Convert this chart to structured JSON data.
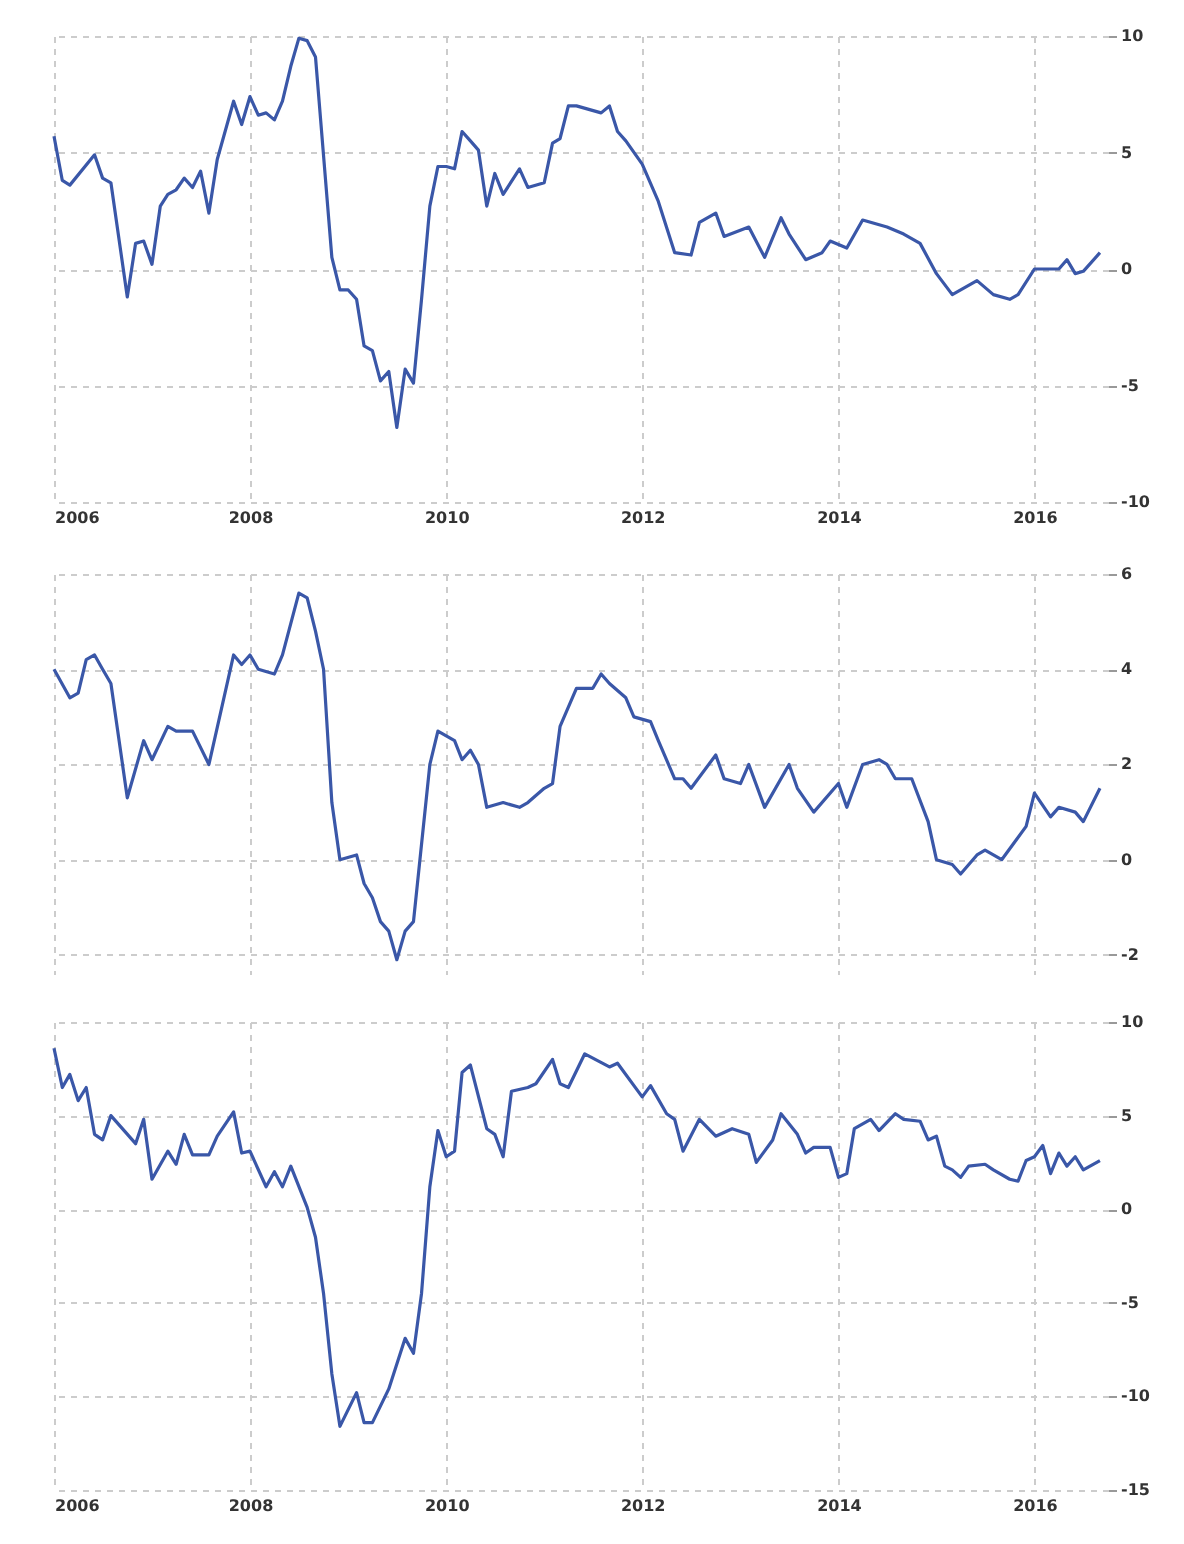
{
  "chart_data": [
    {
      "type": "line",
      "x": [
        "2006-01",
        "2006-02",
        "2006-03",
        "2006-06",
        "2006-07",
        "2006-08",
        "2006-10",
        "2006-11",
        "2006-12",
        "2007-01",
        "2007-02",
        "2007-03",
        "2007-04",
        "2007-05",
        "2007-06",
        "2007-07",
        "2007-08",
        "2007-09",
        "2007-11",
        "2007-12",
        "2008-01",
        "2008-02",
        "2008-03",
        "2008-04",
        "2008-05",
        "2008-06",
        "2008-07",
        "2008-08",
        "2008-09",
        "2008-11",
        "2008-12",
        "2009-01",
        "2009-02",
        "2009-03",
        "2009-04",
        "2009-05",
        "2009-06",
        "2009-07",
        "2009-08",
        "2009-09",
        "2009-10",
        "2009-11",
        "2009-12",
        "2010-01",
        "2010-02",
        "2010-03",
        "2010-04",
        "2010-05",
        "2010-06",
        "2010-07",
        "2010-08",
        "2010-10",
        "2010-11",
        "2011-01",
        "2011-02",
        "2011-03",
        "2011-04",
        "2011-05",
        "2011-08",
        "2011-09",
        "2011-10",
        "2011-11",
        "2012-01",
        "2012-03",
        "2012-05",
        "2012-07",
        "2012-08",
        "2012-10",
        "2012-11",
        "2013-02",
        "2013-04",
        "2013-06",
        "2013-07",
        "2013-09",
        "2013-11",
        "2013-12",
        "2014-02",
        "2014-04",
        "2014-07",
        "2014-09",
        "2014-11",
        "2015-01",
        "2015-03",
        "2015-06",
        "2015-08",
        "2015-10",
        "2015-11",
        "2016-01",
        "2016-04",
        "2016-05",
        "2016-06",
        "2016-07",
        "2016-09"
      ],
      "series": [
        {
          "color": "#3a57a8",
          "values": [
            5.7,
            3.8,
            3.6,
            4.9,
            3.9,
            3.7,
            -1.2,
            1.1,
            1.2,
            0.2,
            2.7,
            3.2,
            3.4,
            3.9,
            3.5,
            4.2,
            2.4,
            4.7,
            7.2,
            6.2,
            7.4,
            6.6,
            6.7,
            6.4,
            7.2,
            8.7,
            9.9,
            9.8,
            9.1,
            0.5,
            -0.9,
            -0.9,
            -1.3,
            -3.3,
            -3.5,
            -4.8,
            -4.4,
            -6.8,
            -4.3,
            -4.9,
            -1.3,
            2.7,
            4.4,
            4.4,
            4.3,
            5.9,
            5.5,
            5.1,
            2.7,
            4.1,
            3.2,
            4.3,
            3.5,
            3.7,
            5.4,
            5.6,
            7.0,
            7.0,
            6.7,
            7.0,
            5.9,
            5.5,
            4.5,
            2.9,
            0.7,
            0.6,
            2.0,
            2.4,
            1.4,
            1.8,
            0.5,
            2.2,
            1.5,
            0.4,
            0.7,
            1.2,
            0.9,
            2.1,
            1.8,
            1.5,
            1.1,
            -0.2,
            -1.1,
            -0.5,
            -1.1,
            -1.3,
            -1.1,
            0,
            0,
            0.4,
            -0.2,
            -0.1,
            0.7
          ]
        }
      ],
      "xlim": [
        "2006-01",
        "2016-10"
      ],
      "xticks": [
        "2006",
        "2008",
        "2010",
        "2012",
        "2014",
        "2016"
      ],
      "ylim": [
        -10,
        10
      ],
      "yticks": [
        -10,
        -5,
        0,
        5,
        10
      ],
      "grid": true
    },
    {
      "type": "line",
      "x": [
        "2006-01",
        "2006-03",
        "2006-04",
        "2006-05",
        "2006-06",
        "2006-07",
        "2006-08",
        "2006-10",
        "2006-12",
        "2007-01",
        "2007-03",
        "2007-04",
        "2007-06",
        "2007-08",
        "2007-11",
        "2007-12",
        "2008-01",
        "2008-02",
        "2008-04",
        "2008-05",
        "2008-07",
        "2008-08",
        "2008-09",
        "2008-10",
        "2008-11",
        "2008-12",
        "2009-02",
        "2009-03",
        "2009-04",
        "2009-05",
        "2009-06",
        "2009-07",
        "2009-08",
        "2009-09",
        "2009-11",
        "2009-12",
        "2010-02",
        "2010-03",
        "2010-04",
        "2010-05",
        "2010-06",
        "2010-08",
        "2010-10",
        "2010-11",
        "2011-01",
        "2011-02",
        "2011-03",
        "2011-05",
        "2011-07",
        "2011-08",
        "2011-09",
        "2011-11",
        "2011-12",
        "2012-02",
        "2012-03",
        "2012-05",
        "2012-06",
        "2012-07",
        "2012-10",
        "2012-11",
        "2013-01",
        "2013-02",
        "2013-04",
        "2013-07",
        "2013-08",
        "2013-10",
        "2014-01",
        "2014-02",
        "2014-04",
        "2014-06",
        "2014-07",
        "2014-08",
        "2014-10",
        "2014-12",
        "2015-01",
        "2015-03",
        "2015-04",
        "2015-06",
        "2015-07",
        "2015-09",
        "2015-12",
        "2016-01",
        "2016-03",
        "2016-04",
        "2016-06",
        "2016-07",
        "2016-09"
      ],
      "series": [
        {
          "color": "#3a57a8",
          "values": [
            4.0,
            3.4,
            3.5,
            4.2,
            4.3,
            4.0,
            3.7,
            1.3,
            2.5,
            2.1,
            2.8,
            2.7,
            2.7,
            2.0,
            4.3,
            4.1,
            4.3,
            4.0,
            3.9,
            4.3,
            5.6,
            5.5,
            4.8,
            4.0,
            1.2,
            0.0,
            0.1,
            -0.5,
            -0.8,
            -1.3,
            -1.5,
            -2.1,
            -1.5,
            -1.3,
            2.0,
            2.7,
            2.5,
            2.1,
            2.3,
            2.0,
            1.1,
            1.2,
            1.1,
            1.2,
            1.5,
            1.6,
            2.8,
            3.6,
            3.6,
            3.9,
            3.7,
            3.4,
            3.0,
            2.9,
            2.5,
            1.7,
            1.7,
            1.5,
            2.2,
            1.7,
            1.6,
            2.0,
            1.1,
            2.0,
            1.5,
            1.0,
            1.6,
            1.1,
            2.0,
            2.1,
            2.0,
            1.7,
            1.7,
            0.8,
            0.0,
            -0.1,
            -0.3,
            0.1,
            0.2,
            0.0,
            0.7,
            1.4,
            0.9,
            1.1,
            1.0,
            0.8,
            1.5
          ]
        }
      ],
      "xlim": [
        "2006-01",
        "2016-10"
      ],
      "xticks": [
        "2006",
        "2008",
        "2010",
        "2012",
        "2014",
        "2016"
      ],
      "ylim": [
        -2.4,
        6
      ],
      "yticks": [
        -2,
        0,
        2,
        4,
        6
      ],
      "grid": true,
      "tick_labels": "y"
    },
    {
      "type": "line",
      "x": [
        "2006-01",
        "2006-02",
        "2006-03",
        "2006-04",
        "2006-05",
        "2006-06",
        "2006-07",
        "2006-08",
        "2006-11",
        "2006-12",
        "2007-01",
        "2007-03",
        "2007-04",
        "2007-05",
        "2007-06",
        "2007-08",
        "2007-09",
        "2007-11",
        "2007-12",
        "2008-01",
        "2008-03",
        "2008-04",
        "2008-05",
        "2008-06",
        "2008-08",
        "2008-09",
        "2008-10",
        "2008-11",
        "2008-12",
        "2009-02",
        "2009-03",
        "2009-04",
        "2009-06",
        "2009-08",
        "2009-09",
        "2009-10",
        "2009-11",
        "2009-12",
        "2010-01",
        "2010-02",
        "2010-03",
        "2010-04",
        "2010-06",
        "2010-07",
        "2010-08",
        "2010-09",
        "2010-11",
        "2010-12",
        "2011-02",
        "2011-03",
        "2011-04",
        "2011-06",
        "2011-09",
        "2011-10",
        "2012-01",
        "2012-02",
        "2012-04",
        "2012-05",
        "2012-06",
        "2012-08",
        "2012-10",
        "2012-12",
        "2013-02",
        "2013-03",
        "2013-05",
        "2013-06",
        "2013-08",
        "2013-09",
        "2013-10",
        "2013-12",
        "2014-01",
        "2014-02",
        "2014-03",
        "2014-05",
        "2014-06",
        "2014-08",
        "2014-09",
        "2014-11",
        "2014-12",
        "2015-01",
        "2015-02",
        "2015-03",
        "2015-04",
        "2015-05",
        "2015-07",
        "2015-08",
        "2015-10",
        "2015-11",
        "2015-12",
        "2016-01",
        "2016-02",
        "2016-03",
        "2016-04",
        "2016-05",
        "2016-06",
        "2016-07",
        "2016-09"
      ],
      "series": [
        {
          "color": "#3a57a8",
          "values": [
            8.6,
            6.5,
            7.2,
            5.8,
            6.5,
            4.0,
            3.7,
            5.0,
            3.5,
            4.8,
            1.6,
            3.1,
            2.4,
            4.0,
            2.9,
            2.9,
            3.9,
            5.2,
            3.0,
            3.1,
            1.2,
            2.0,
            1.2,
            2.3,
            0.1,
            -1.5,
            -4.5,
            -8.8,
            -11.6,
            -9.8,
            -11.4,
            -11.4,
            -9.6,
            -6.9,
            -7.7,
            -4.5,
            1.2,
            4.2,
            2.8,
            3.1,
            7.3,
            7.7,
            4.3,
            4.0,
            2.8,
            6.3,
            6.5,
            6.7,
            8.0,
            6.7,
            6.5,
            8.3,
            7.6,
            7.8,
            6.0,
            6.6,
            5.1,
            4.8,
            3.1,
            4.8,
            3.9,
            4.3,
            4.0,
            2.5,
            3.7,
            5.1,
            4.0,
            3.0,
            3.3,
            3.3,
            1.7,
            1.9,
            4.3,
            4.8,
            4.2,
            5.1,
            4.8,
            4.7,
            3.7,
            3.9,
            2.3,
            2.1,
            1.7,
            2.3,
            2.4,
            2.1,
            1.6,
            1.5,
            2.6,
            2.8,
            3.4,
            1.9,
            3.0,
            2.3,
            2.8,
            2.1,
            2.6
          ]
        }
      ],
      "xlim": [
        "2006-01",
        "2016-10"
      ],
      "xticks": [
        "2006",
        "2008",
        "2010",
        "2012",
        "2014",
        "2016"
      ],
      "ylim": [
        -15,
        10
      ],
      "yticks": [
        -15,
        -10,
        -5,
        0,
        5,
        10
      ],
      "grid": true
    }
  ]
}
